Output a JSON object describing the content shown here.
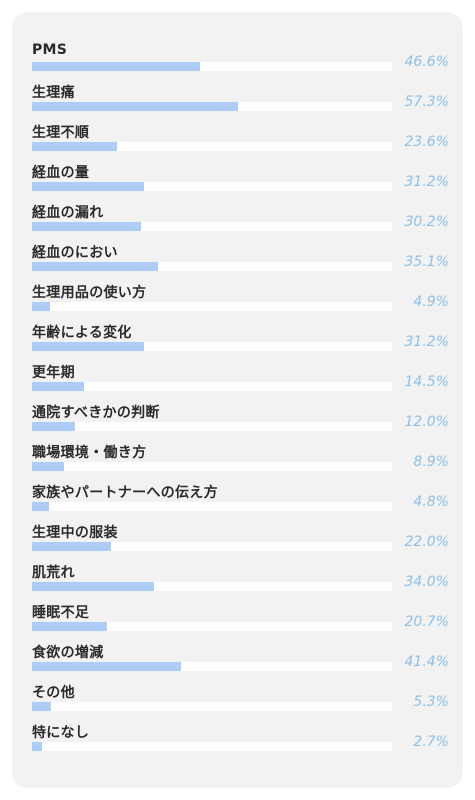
{
  "chart_data": {
    "type": "bar",
    "orientation": "horizontal",
    "categories": [
      "PMS",
      "生理痛",
      "生理不順",
      "経血の量",
      "経血の漏れ",
      "経血のにおい",
      "生理用品の使い方",
      "年齢による変化",
      "更年期",
      "通院すべきかの判断",
      "職場環境・働き方",
      "家族やパートナーへの伝え方",
      "生理中の服装",
      "肌荒れ",
      "睡眠不足",
      "食欲の増減",
      "その他",
      "特になし"
    ],
    "values": [
      46.6,
      57.3,
      23.6,
      31.2,
      30.2,
      35.1,
      4.9,
      31.2,
      14.5,
      12.0,
      8.9,
      4.8,
      22.0,
      34.0,
      20.7,
      41.4,
      5.3,
      2.7
    ],
    "value_labels": [
      "46.6%",
      "57.3%",
      "23.6%",
      "31.2%",
      "30.2%",
      "35.1%",
      "4.9%",
      "31.2%",
      "14.5%",
      "12.0%",
      "8.9%",
      "4.8%",
      "22.0%",
      "34.0%",
      "20.7%",
      "41.4%",
      "5.3%",
      "2.7%"
    ],
    "unit": "%",
    "xlim": [
      0,
      100
    ],
    "bar_color": "#aecdf6",
    "track_color": "#ffffff",
    "value_color": "#8fbfe7",
    "label_color": "#2b2b2b",
    "background_color": "#f2f2f2"
  }
}
